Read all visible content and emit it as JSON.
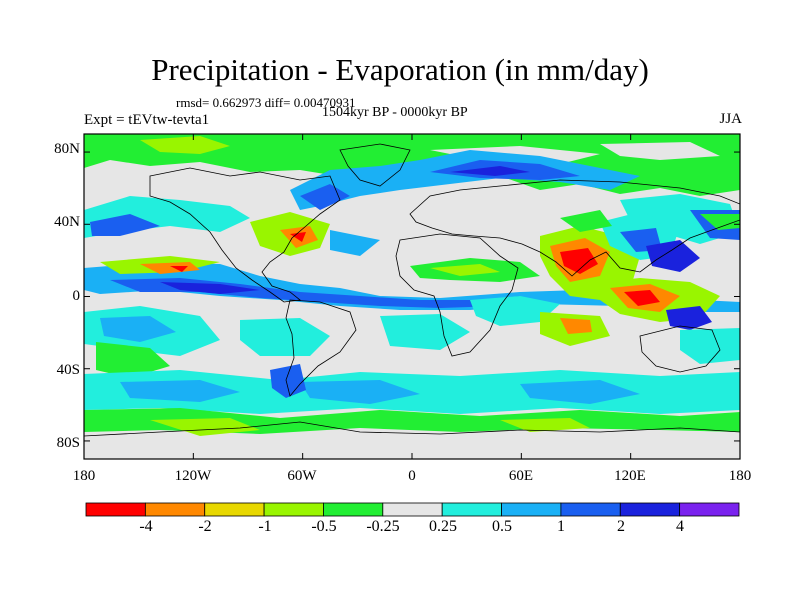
{
  "title": "Precipitation - Evaporation (in mm/day)",
  "stats": "rmsd= 0.662973 diff= 0.00470931",
  "experiment": "Expt = tEVtw-tevta1",
  "period": "1504kyr BP - 0000kyr BP",
  "season": "JJA",
  "axes": {
    "lat_labels": [
      "80N",
      "40N",
      "0",
      "40S",
      "80S"
    ],
    "lat_values": [
      80,
      40,
      0,
      -40,
      -80
    ],
    "lon_labels": [
      "180",
      "120W",
      "60W",
      "0",
      "60E",
      "120E",
      "180"
    ],
    "lon_values": [
      -180,
      -120,
      -60,
      0,
      60,
      120,
      180
    ]
  },
  "colorbar": {
    "labels": [
      "-4",
      "-2",
      "-1",
      "-0.5",
      "-0.25",
      "0.25",
      "0.5",
      "1",
      "2",
      "4"
    ],
    "colors": [
      "#ff0000",
      "#ff8800",
      "#e8d800",
      "#99f500",
      "#22ee33",
      "#e6e6e6",
      "#22eedd",
      "#1ab0f5",
      "#1a5ff0",
      "#1a22dd",
      "#7a22ee"
    ]
  }
}
